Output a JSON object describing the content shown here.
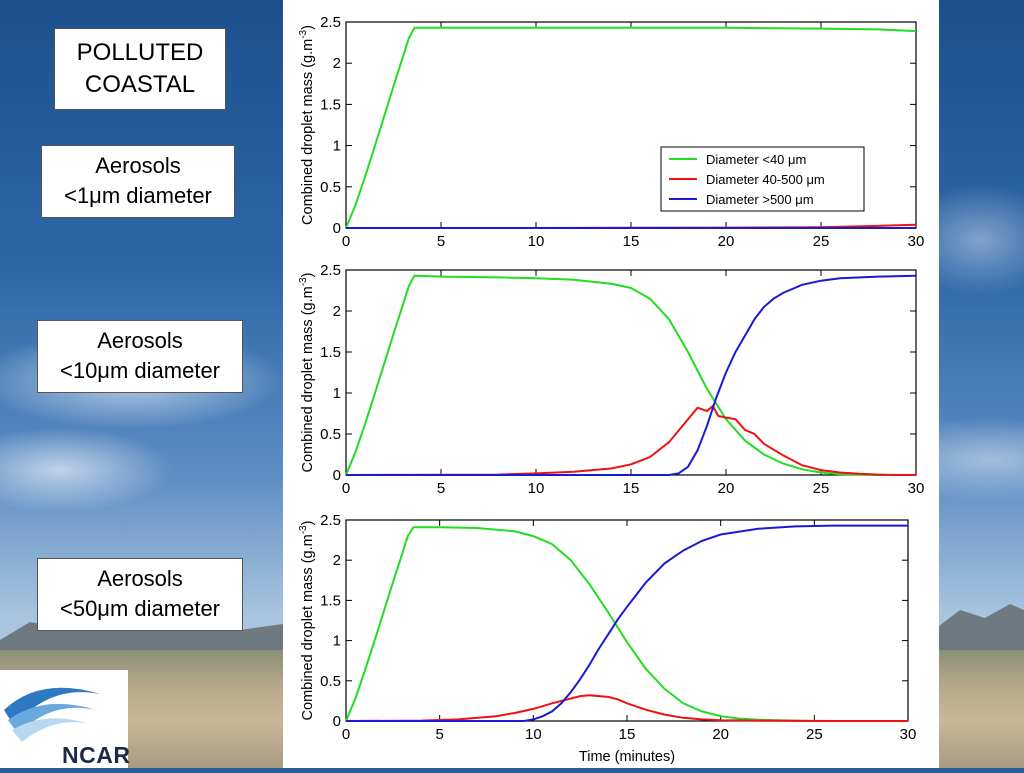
{
  "labels": {
    "title_line1": "POLLUTED",
    "title_line2": "COASTAL",
    "panel1_line1": "Aerosols",
    "panel1_line2": "<1μm diameter",
    "panel2_line1": "Aerosols",
    "panel2_line2": "<10μm diameter",
    "panel3_line1": "Aerosols",
    "panel3_line2": "<50μm diameter",
    "logo": "NCAR"
  },
  "colors": {
    "small": "#22dd22",
    "medium": "#ee1111",
    "large": "#1a1ad6"
  },
  "chart_data": [
    {
      "type": "line",
      "xlabel": "",
      "ylabel": "Combined droplet mass (g.m-3)",
      "xlim": [
        0,
        30
      ],
      "ylim": [
        0,
        2.5
      ],
      "xticks": [
        0,
        5,
        10,
        15,
        20,
        25,
        30
      ],
      "yticks": [
        0,
        0.5,
        1,
        1.5,
        2,
        2.5
      ],
      "legend": {
        "location": "right"
      },
      "series": [
        {
          "name": "Diameter <40 μm",
          "x": [
            0,
            0.5,
            1,
            1.5,
            2,
            2.5,
            3,
            3.3,
            3.6,
            5,
            10,
            15,
            20,
            25,
            28,
            30
          ],
          "y": [
            0,
            0.28,
            0.62,
            0.98,
            1.35,
            1.72,
            2.08,
            2.3,
            2.43,
            2.43,
            2.43,
            2.43,
            2.43,
            2.42,
            2.41,
            2.39
          ]
        },
        {
          "name": "Diameter 40-500 μm",
          "x": [
            0,
            10,
            20,
            25,
            28,
            30
          ],
          "y": [
            0,
            0,
            0.005,
            0.01,
            0.025,
            0.04
          ]
        },
        {
          "name": "Diameter >500 μm",
          "x": [
            0,
            30
          ],
          "y": [
            0,
            0
          ]
        }
      ]
    },
    {
      "type": "line",
      "xlabel": "",
      "ylabel": "Combined droplet mass (g.m-3)",
      "xlim": [
        0,
        30
      ],
      "ylim": [
        0,
        2.5
      ],
      "xticks": [
        0,
        5,
        10,
        15,
        20,
        25,
        30
      ],
      "yticks": [
        0,
        0.5,
        1,
        1.5,
        2,
        2.5
      ],
      "series": [
        {
          "name": "Diameter <40 μm",
          "x": [
            0,
            0.5,
            1,
            1.5,
            2,
            2.5,
            3,
            3.3,
            3.6,
            5,
            8,
            10,
            12,
            14,
            15,
            16,
            17,
            18,
            19,
            20,
            21,
            22,
            23,
            24,
            25,
            26,
            28,
            30
          ],
          "y": [
            0,
            0.28,
            0.62,
            0.98,
            1.35,
            1.72,
            2.08,
            2.3,
            2.43,
            2.42,
            2.41,
            2.4,
            2.38,
            2.33,
            2.28,
            2.15,
            1.9,
            1.5,
            1.05,
            0.68,
            0.42,
            0.25,
            0.14,
            0.07,
            0.03,
            0.01,
            0,
            0
          ]
        },
        {
          "name": "Diameter 40-500 μm",
          "x": [
            0,
            8,
            10,
            12,
            14,
            15,
            16,
            17,
            18,
            18.5,
            19,
            19.3,
            19.6,
            20,
            20.5,
            21,
            21.5,
            22,
            23,
            24,
            25,
            26,
            27,
            28,
            29,
            30
          ],
          "y": [
            0,
            0.005,
            0.02,
            0.04,
            0.08,
            0.13,
            0.22,
            0.4,
            0.68,
            0.82,
            0.78,
            0.84,
            0.72,
            0.7,
            0.68,
            0.55,
            0.5,
            0.38,
            0.24,
            0.12,
            0.06,
            0.03,
            0.015,
            0.005,
            0,
            0
          ]
        },
        {
          "name": "Diameter >500 μm",
          "x": [
            0,
            17,
            17.5,
            18,
            18.5,
            19,
            19.5,
            20,
            20.5,
            21,
            21.5,
            22,
            22.5,
            23,
            24,
            25,
            26,
            28,
            30
          ],
          "y": [
            0,
            0,
            0.02,
            0.1,
            0.3,
            0.6,
            0.95,
            1.25,
            1.5,
            1.7,
            1.9,
            2.05,
            2.15,
            2.22,
            2.32,
            2.37,
            2.4,
            2.42,
            2.43
          ]
        }
      ]
    },
    {
      "type": "line",
      "xlabel": "Time (minutes)",
      "ylabel": "Combined droplet mass (g.m-3)",
      "xlim": [
        0,
        30
      ],
      "ylim": [
        0,
        2.5
      ],
      "xticks": [
        0,
        5,
        10,
        15,
        20,
        25,
        30
      ],
      "yticks": [
        0,
        0.5,
        1,
        1.5,
        2,
        2.5
      ],
      "series": [
        {
          "name": "Diameter <40 μm",
          "x": [
            0,
            0.5,
            1,
            1.5,
            2,
            2.5,
            3,
            3.3,
            3.6,
            5,
            7,
            9,
            10,
            11,
            12,
            13,
            14,
            15,
            16,
            17,
            18,
            19,
            20,
            21,
            22,
            24,
            26,
            30
          ],
          "y": [
            0,
            0.28,
            0.62,
            0.98,
            1.35,
            1.72,
            2.08,
            2.3,
            2.41,
            2.41,
            2.4,
            2.36,
            2.3,
            2.2,
            2.0,
            1.7,
            1.35,
            0.98,
            0.65,
            0.4,
            0.22,
            0.12,
            0.06,
            0.03,
            0.015,
            0.005,
            0,
            0
          ]
        },
        {
          "name": "Diameter 40-500 μm",
          "x": [
            0,
            4,
            6,
            8,
            9,
            10,
            11,
            12,
            12.5,
            13,
            13.5,
            14,
            14.5,
            15,
            16,
            17,
            18,
            19,
            20,
            22,
            25,
            30
          ],
          "y": [
            0,
            0.005,
            0.02,
            0.06,
            0.1,
            0.15,
            0.22,
            0.28,
            0.31,
            0.32,
            0.31,
            0.3,
            0.27,
            0.22,
            0.14,
            0.08,
            0.04,
            0.02,
            0.01,
            0.005,
            0,
            0
          ]
        },
        {
          "name": "Diameter >500 μm",
          "x": [
            0,
            9.5,
            10,
            10.5,
            11,
            11.5,
            12,
            12.5,
            13,
            13.5,
            14,
            14.5,
            15,
            16,
            17,
            18,
            19,
            20,
            22,
            24,
            26,
            30
          ],
          "y": [
            0,
            0,
            0.02,
            0.06,
            0.12,
            0.22,
            0.36,
            0.52,
            0.7,
            0.9,
            1.08,
            1.26,
            1.42,
            1.72,
            1.96,
            2.12,
            2.24,
            2.32,
            2.39,
            2.42,
            2.43,
            2.43
          ]
        }
      ]
    }
  ]
}
